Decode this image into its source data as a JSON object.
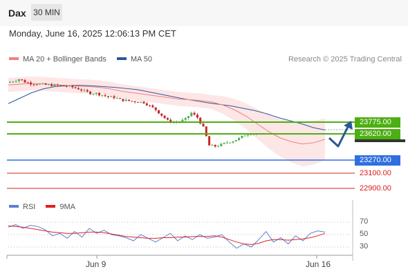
{
  "header": {
    "title": "Dax",
    "timeframe": "30 MIN",
    "datetime": "Monday, June 16, 2025 12:06:13 PM CET",
    "credit": "Research © 2025 Trading Central"
  },
  "legend": {
    "items": [
      {
        "label": "MA 20 + Bollinger Bands",
        "color": "#f08080"
      },
      {
        "label": "MA 50",
        "color": "#2b5797"
      }
    ]
  },
  "levels": [
    {
      "label": "23775.00",
      "style": "green"
    },
    {
      "label": "23620.00",
      "style": "green"
    },
    {
      "label": "23270.00",
      "style": "blue"
    },
    {
      "label": "23100.00",
      "style": "red"
    },
    {
      "label": "22900.00",
      "style": "red"
    }
  ],
  "rsi_panel": {
    "legend": [
      {
        "label": "RSI",
        "color": "#5a7fd6"
      },
      {
        "label": "9MA",
        "color": "#e02020"
      }
    ],
    "ticks": [
      "70",
      "50",
      "30"
    ]
  },
  "x_axis": {
    "labels": [
      "Jun 9",
      "Jun 16"
    ]
  },
  "colors": {
    "up": "#4caf50",
    "down": "#c62828",
    "band": "#fde3e3",
    "ma20": "#f08080",
    "ma50": "#2b5797",
    "green_level": "#4caf12",
    "blue_level": "#2f6fe0",
    "red_level": "#d81b1b",
    "arrow": "#2b5797"
  },
  "chart_data": {
    "type": "candlestick",
    "ylim": [
      22850,
      24450
    ],
    "price_series": [
      24230,
      24250,
      24275,
      24240,
      24220,
      24215,
      24205,
      24200,
      24195,
      24190,
      24185,
      24170,
      24150,
      24120,
      24095,
      24090,
      24070,
      24045,
      24040,
      24010,
      24000,
      23990,
      23985,
      23975,
      23930,
      23880,
      23810,
      23740,
      23720,
      23725,
      23760,
      23840,
      23780,
      23650,
      23420,
      23410,
      23430,
      23460,
      23480,
      23510,
      23555,
      23580,
      23570
    ],
    "series": [
      {
        "name": "MA 50",
        "values": [
          23960,
          24030,
          24100,
          24150,
          24180,
          24190,
          24195,
          24190,
          24180,
          24170,
          24155,
          24140,
          24110,
          24080,
          24050,
          24020,
          23995,
          23970,
          23950,
          23930,
          23900,
          23870,
          23830,
          23780,
          23740,
          23700,
          23650,
          23620
        ]
      },
      {
        "name": "MA 20",
        "values": [
          24200,
          24210,
          24220,
          24215,
          24205,
          24195,
          24185,
          24180,
          24170,
          24150,
          24120,
          24100,
          24080,
          24060,
          24040,
          24020,
          24010,
          24000,
          23980,
          23940,
          23880,
          23800,
          23700,
          23600,
          23520,
          23470,
          23440,
          23455,
          23500
        ]
      }
    ],
    "rsi": {
      "ylim": [
        20,
        80
      ],
      "ticks": [
        70,
        50,
        30
      ],
      "rsi": [
        62,
        66,
        60,
        65,
        63,
        58,
        48,
        52,
        44,
        55,
        46,
        60,
        52,
        57,
        50,
        48,
        45,
        40,
        50,
        44,
        38,
        45,
        52,
        40,
        48,
        42,
        50,
        44,
        46,
        50,
        38,
        28,
        35,
        30,
        42,
        55,
        38,
        45,
        35,
        48,
        40,
        52,
        56,
        54
      ],
      "ma9": [
        64,
        63,
        62,
        60,
        58,
        56,
        54,
        53,
        52,
        52,
        53,
        54,
        54,
        53,
        51,
        49,
        47,
        46,
        45,
        44,
        44,
        45,
        45,
        46,
        46,
        47,
        47,
        47,
        48,
        46,
        42,
        38,
        35,
        34,
        36,
        40,
        42,
        42,
        41,
        42,
        43,
        45,
        48,
        52
      ]
    }
  }
}
